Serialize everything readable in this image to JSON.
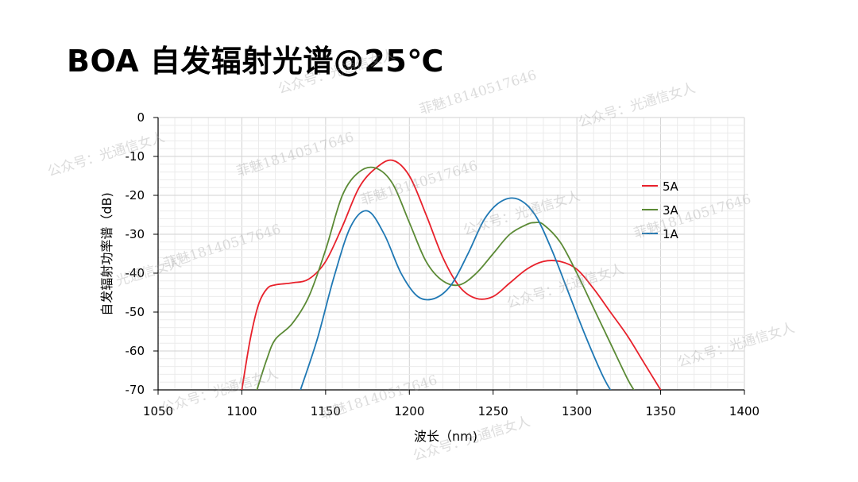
{
  "page": {
    "title": "BOA 自发辐射光谱@25℃"
  },
  "chart_data": {
    "type": "line",
    "title": "",
    "xlabel": "波长（nm)",
    "ylabel": "自发辐射功率谱（dB)",
    "xlim": [
      1050,
      1400
    ],
    "ylim": [
      -70,
      0
    ],
    "xticks": [
      1050,
      1100,
      1150,
      1200,
      1250,
      1300,
      1350,
      1400
    ],
    "yticks": [
      0,
      -10,
      -20,
      -30,
      -40,
      -50,
      -60,
      -70
    ],
    "grid": true,
    "legend_position": "right",
    "series": [
      {
        "name": "5A",
        "color": "#e8212b",
        "x": [
          1100,
          1105,
          1110,
          1115,
          1120,
          1130,
          1140,
          1150,
          1160,
          1170,
          1180,
          1190,
          1200,
          1210,
          1220,
          1230,
          1240,
          1250,
          1260,
          1270,
          1280,
          1290,
          1300,
          1310,
          1320,
          1330,
          1340,
          1350
        ],
        "y": [
          -70,
          -57,
          -48,
          -44,
          -43,
          -42.5,
          -41.5,
          -37,
          -28,
          -18,
          -13,
          -11,
          -15,
          -25,
          -36,
          -43.5,
          -46.5,
          -46,
          -42.5,
          -39,
          -37,
          -37,
          -39,
          -44,
          -50,
          -56,
          -63,
          -70
        ]
      },
      {
        "name": "3A",
        "color": "#5b8a35",
        "x": [
          1109,
          1115,
          1120,
          1130,
          1140,
          1150,
          1160,
          1170,
          1180,
          1190,
          1200,
          1210,
          1220,
          1230,
          1240,
          1250,
          1260,
          1270,
          1275,
          1280,
          1290,
          1300,
          1310,
          1320,
          1330,
          1334
        ],
        "y": [
          -70,
          -62,
          -57,
          -53,
          -46,
          -34,
          -20,
          -14,
          -13,
          -17,
          -27,
          -37,
          -42,
          -43,
          -40,
          -35,
          -30,
          -27.5,
          -27,
          -27.5,
          -32,
          -40,
          -49,
          -58,
          -67,
          -70
        ]
      },
      {
        "name": "1A",
        "color": "#1f78b4",
        "x": [
          1135,
          1145,
          1155,
          1165,
          1175,
          1185,
          1195,
          1205,
          1215,
          1225,
          1235,
          1245,
          1255,
          1265,
          1275,
          1285,
          1295,
          1305,
          1315,
          1320
        ],
        "y": [
          -70,
          -57,
          -41,
          -28,
          -24,
          -30,
          -40,
          -46,
          -46.5,
          -43,
          -35,
          -26,
          -21.5,
          -21,
          -25,
          -34,
          -45,
          -56,
          -66,
          -70
        ]
      }
    ]
  },
  "watermarks": [
    "公众号：光通信女人",
    "菲魅18140517646",
    "公众号：光通信女人",
    "菲魅18140517646",
    "公众号：光通信女人",
    "菲魅18140517646",
    "光通信女人",
    "公众号：光通信女人",
    "菲魅18140517646",
    "公众号：光通信女人",
    "菲魅18140517646",
    "公众号：光通信女人",
    "公众号：光通信女人",
    "菲魅18140517646",
    "公众号：光通信女人"
  ]
}
